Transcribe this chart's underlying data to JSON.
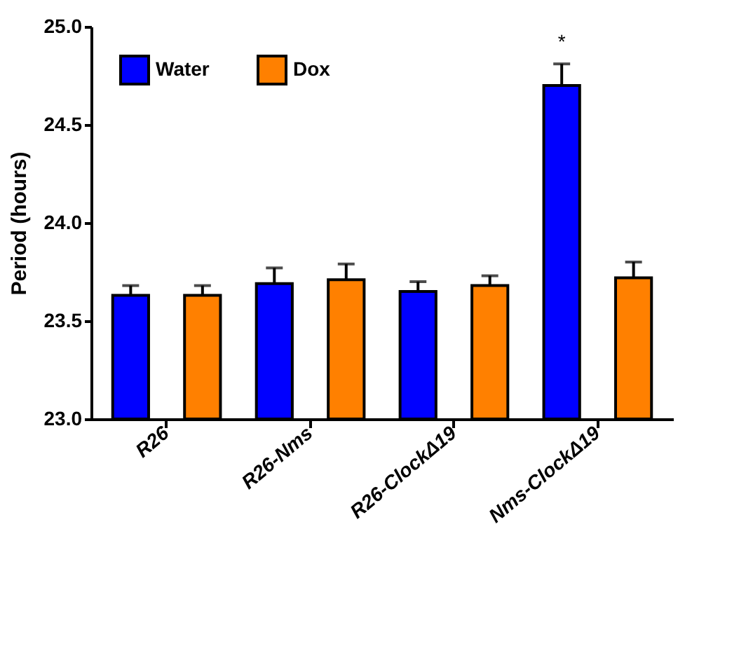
{
  "chart_data": {
    "type": "bar",
    "ylabel": "Period  (hours)",
    "categories": [
      "R26",
      "R26-Nms",
      "R26-ClockΔ19",
      "Nms-ClockΔ19"
    ],
    "series": [
      {
        "name": "Water",
        "color": "#0000ff",
        "values": [
          23.63,
          23.69,
          23.65,
          24.7
        ],
        "errors": [
          [
            23.63,
            23.68
          ],
          [
            23.69,
            23.77
          ],
          [
            23.65,
            23.7
          ],
          [
            24.7,
            24.81
          ]
        ]
      },
      {
        "name": "Dox",
        "color": "#ff8000",
        "values": [
          23.63,
          23.71,
          23.68,
          23.72
        ],
        "errors": [
          [
            23.63,
            23.68
          ],
          [
            23.71,
            23.79
          ],
          [
            23.68,
            23.73
          ],
          [
            23.72,
            23.8
          ]
        ]
      }
    ],
    "ylim": [
      23,
      25
    ],
    "yticks": [
      {
        "value": 23,
        "label": "23.0"
      },
      24.5,
      {
        "value": 24,
        "label": "24.0"
      },
      23.5,
      {
        "value": 25,
        "label": "25.0"
      }
    ],
    "annotations": [
      "*"
    ],
    "legend": "top left",
    "grid": false
  }
}
